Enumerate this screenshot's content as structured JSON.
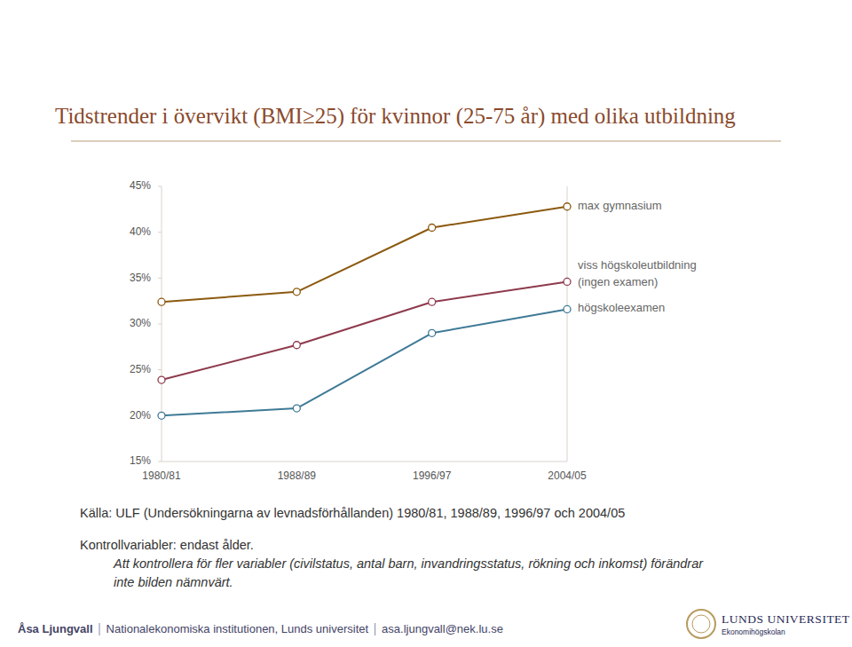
{
  "chart_data": {
    "type": "line",
    "title": "Tidstrender i övervikt (BMI≥25) för kvinnor (25-75 år) med olika utbildning",
    "categories": [
      "1980/81",
      "1988/89",
      "1996/97",
      "2004/05"
    ],
    "series": [
      {
        "name": "max gymnasium",
        "color": "#8c5a10",
        "values": [
          32.4,
          33.5,
          40.5,
          42.8
        ]
      },
      {
        "name": "viss högskoleutbildning (ingen examen)",
        "color": "#8e3a4c",
        "values": [
          23.9,
          27.7,
          32.4,
          34.6
        ]
      },
      {
        "name": "högskoleexamen",
        "color": "#3f7a96",
        "values": [
          20.0,
          20.8,
          29.0,
          31.6
        ]
      }
    ],
    "ylim": [
      15,
      45
    ],
    "yticks": [
      {
        "value": 15,
        "label": "15%"
      },
      {
        "value": 20,
        "label": "20%"
      },
      {
        "value": 25,
        "label": "25%"
      },
      {
        "value": 30,
        "label": "30%"
      },
      {
        "value": 35,
        "label": "35%"
      },
      {
        "value": 40,
        "label": "40%"
      },
      {
        "value": 45,
        "label": "45%"
      }
    ],
    "grid": false,
    "marker": "circle",
    "source": "Källa: ULF (Undersökningarna av levnadsförhållanden) 1980/81, 1988/89, 1996/97 och 2004/05",
    "notes": {
      "control": "Kontrollvariabler: endast ålder.",
      "remark": [
        "Att kontrollera för fler variabler (civilstatus, antal barn, invandringsstatus, rökning och inkomst) förändrar",
        "inte bilden nämnvärt."
      ]
    },
    "footer": [
      "Åsa Ljungvall",
      "Nationalekonomiska institutionen, Lunds universitet",
      "asa.ljungvall@nek.lu.se"
    ],
    "logo": [
      "LUNDS UNIVERSITET",
      "Ekonomihögskolan"
    ]
  }
}
